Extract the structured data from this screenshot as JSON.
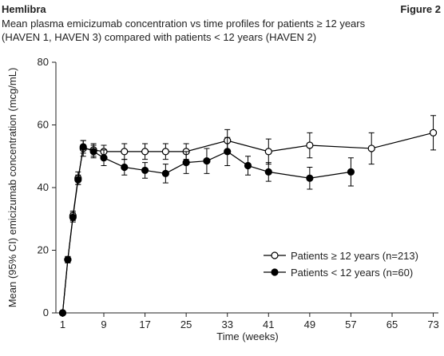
{
  "header": {
    "left": "Hemlibra",
    "right": "Figure 2"
  },
  "chart_data": {
    "type": "line",
    "title": [
      "Mean plasma emicizumab concentration vs time profiles for patients ≥ 12 years",
      "(HAVEN 1, HAVEN 3) compared with patients < 12 years (HAVEN 2)"
    ],
    "x_label": "Time (weeks)",
    "y_label": "Mean (95% CI) emicizumab concentration (mcg/mL)",
    "xlim": [
      0,
      74
    ],
    "xticks": [
      1,
      9,
      17,
      25,
      33,
      41,
      49,
      57,
      65,
      73
    ],
    "ylim": [
      0,
      80
    ],
    "yticks": [
      0,
      20,
      40,
      60,
      80
    ],
    "series": [
      {
        "name": "Patients ≥ 12 years (n=213)",
        "color": "#000000",
        "marker": "open",
        "x": [
          1,
          2,
          3,
          4,
          5,
          7,
          9,
          13,
          17,
          21,
          25,
          33,
          41,
          49,
          61,
          73
        ],
        "values": [
          0,
          17,
          31,
          43,
          52.5,
          52,
          51.5,
          51.5,
          51.5,
          51.5,
          51.5,
          55,
          51.5,
          53.5,
          52.5,
          57.5
        ],
        "errors": [
          0,
          1,
          1.5,
          2,
          2.5,
          2,
          2,
          2.5,
          2.5,
          2.5,
          2.5,
          3.5,
          4,
          4,
          5,
          5.5
        ]
      },
      {
        "name": "Patients < 12 years (n=60)",
        "color": "#000000",
        "marker": "filled",
        "x": [
          1,
          2,
          3,
          4,
          5,
          7,
          9,
          13,
          17,
          21,
          25,
          29,
          33,
          37,
          41,
          49,
          57
        ],
        "values": [
          0,
          17,
          30.5,
          42.5,
          53,
          51.5,
          49.5,
          46.5,
          45.5,
          44.5,
          48,
          48.5,
          51.5,
          47,
          45,
          43,
          45
        ],
        "errors": [
          0,
          1,
          1.5,
          1.5,
          2,
          2,
          2.5,
          2.5,
          2.5,
          3,
          3.5,
          4,
          4.5,
          3,
          3,
          3.5,
          4.5
        ]
      }
    ]
  }
}
